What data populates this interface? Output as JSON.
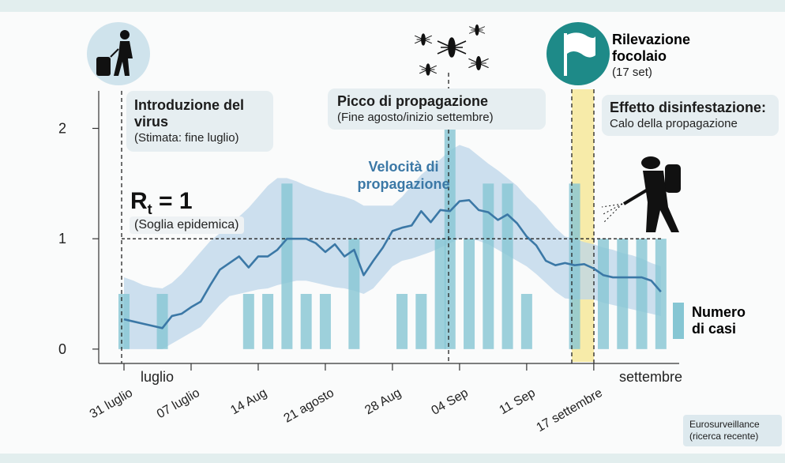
{
  "chart_data": {
    "type": "combo",
    "categories": [
      "31 luglio",
      null,
      null,
      null,
      null,
      null,
      null,
      "07 luglio",
      null,
      null,
      null,
      null,
      null,
      null,
      "14 Aug",
      null,
      null,
      null,
      null,
      null,
      null,
      "21 agosto",
      null,
      null,
      null,
      null,
      null,
      null,
      "28 Aug",
      null,
      null,
      null,
      null,
      null,
      null,
      "04 Sep",
      null,
      null,
      null,
      null,
      null,
      null,
      "11 Sep",
      null,
      null,
      null,
      null,
      null,
      null,
      "17 settembre",
      null,
      null,
      null,
      null,
      null,
      null,
      null
    ],
    "month_labels": [
      "luglio",
      "settembre"
    ],
    "ylim": [
      -0.13,
      2.34
    ],
    "yticks": [
      0,
      1,
      2
    ],
    "threshold": 1,
    "threshold_label": {
      "main": "R",
      "sub": "t",
      "rest": " = 1",
      "note": "(Soglia epidemica)"
    },
    "series": [
      {
        "name": "Velocità di propagazione",
        "type": "line",
        "color": "#3b78a6",
        "band_color": "#bcd6ea",
        "values": [
          0.27,
          0.25,
          0.23,
          0.21,
          0.19,
          0.3,
          0.32,
          0.38,
          0.43,
          0.58,
          0.72,
          0.78,
          0.84,
          0.74,
          0.84,
          0.84,
          0.9,
          1.0,
          1.0,
          1.0,
          0.96,
          0.88,
          0.95,
          0.84,
          0.9,
          0.67,
          0.8,
          0.92,
          1.07,
          1.1,
          1.12,
          1.25,
          1.15,
          1.26,
          1.25,
          1.34,
          1.35,
          1.26,
          1.24,
          1.17,
          1.22,
          1.14,
          1.02,
          0.94,
          0.8,
          0.76,
          0.78,
          0.76,
          0.77,
          0.73,
          0.67,
          0.65,
          0.65,
          0.65,
          0.65,
          0.62,
          0.52
        ],
        "lower": [
          0,
          0,
          0,
          0,
          0,
          0.05,
          0.1,
          0.15,
          0.2,
          0.3,
          0.4,
          0.48,
          0.5,
          0.52,
          0.54,
          0.55,
          0.58,
          0.6,
          0.62,
          0.62,
          0.6,
          0.58,
          0.56,
          0.55,
          0.53,
          0.5,
          0.55,
          0.65,
          0.75,
          0.8,
          0.82,
          0.85,
          0.88,
          0.92,
          0.96,
          1.0,
          1.0,
          0.98,
          0.95,
          0.9,
          0.85,
          0.8,
          0.75,
          0.68,
          0.6,
          0.52,
          0.46,
          0.45,
          0.45,
          0.45,
          0.42,
          0.4,
          0.38,
          0.36,
          0.34,
          0.32,
          0.3
        ],
        "upper": [
          0.65,
          0.62,
          0.58,
          0.56,
          0.55,
          0.6,
          0.68,
          0.78,
          0.88,
          0.98,
          1.05,
          1.12,
          1.2,
          1.28,
          1.38,
          1.48,
          1.55,
          1.55,
          1.52,
          1.48,
          1.45,
          1.42,
          1.4,
          1.38,
          1.35,
          1.3,
          1.3,
          1.3,
          1.3,
          1.38,
          1.48,
          1.58,
          1.65,
          1.72,
          1.8,
          1.85,
          1.82,
          1.75,
          1.68,
          1.62,
          1.55,
          1.48,
          1.38,
          1.3,
          1.2,
          1.1,
          1.02,
          1.0,
          0.97,
          0.95,
          0.92,
          0.9,
          0.87,
          0.85,
          0.82,
          0.78,
          0.75
        ]
      },
      {
        "name": "Numero di casi",
        "type": "bar",
        "color": "#86c6d3",
        "values": [
          0.5,
          null,
          null,
          null,
          0.5,
          null,
          null,
          null,
          null,
          null,
          null,
          null,
          null,
          0.5,
          null,
          0.5,
          null,
          1.5,
          null,
          0.5,
          null,
          0.5,
          null,
          null,
          1.0,
          null,
          null,
          null,
          null,
          0.5,
          null,
          0.5,
          null,
          1.0,
          2.0,
          null,
          1.0,
          null,
          1.5,
          null,
          1.5,
          null,
          0.5,
          null,
          null,
          null,
          null,
          1.5,
          null,
          null,
          1.0,
          null,
          1.0,
          null,
          1.0,
          null,
          1.0
        ]
      }
    ],
    "annotations": {
      "introduction": {
        "title": "Introduzione del virus",
        "note": "(Stimata: fine luglio)"
      },
      "peak": {
        "title": "Picco di propagazione",
        "note": "(Fine agosto/inizio settembre)"
      },
      "detection": {
        "title": "Rilevazione focolaio",
        "note": "(17 set)"
      },
      "effect": {
        "title": "Effetto disinfestazione:",
        "note": "Calo della propagazione"
      }
    },
    "source": "Eurosurveillance (ricerca recente)"
  }
}
